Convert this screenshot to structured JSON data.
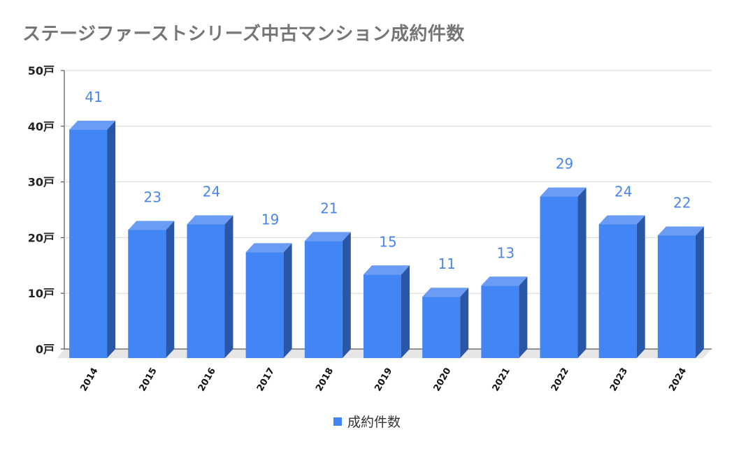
{
  "title": "ステージファーストシリーズ中古マンション成約件数",
  "colors": {
    "bar_front": "#4285f4",
    "bar_top": "#6a9cf5",
    "bar_side": "#2a56a8",
    "data_label": "#4a86e8",
    "grid": "#d9d9d9",
    "floor": "#e6e6e6"
  },
  "chart_data": {
    "type": "bar",
    "categories": [
      "2014",
      "2015",
      "2016",
      "2017",
      "2018",
      "2019",
      "2020",
      "2021",
      "2022",
      "2023",
      "2024"
    ],
    "series": [
      {
        "name": "成約件数",
        "values": [
          41,
          23,
          24,
          19,
          21,
          15,
          11,
          13,
          29,
          24,
          22
        ]
      }
    ],
    "yticks": [
      "0戸",
      "10戸",
      "20戸",
      "30戸",
      "40戸",
      "50戸"
    ],
    "ylim": [
      0,
      50
    ],
    "grid": true,
    "legend_position": "bottom",
    "three_d": true
  },
  "legend": {
    "label": "成約件数"
  }
}
